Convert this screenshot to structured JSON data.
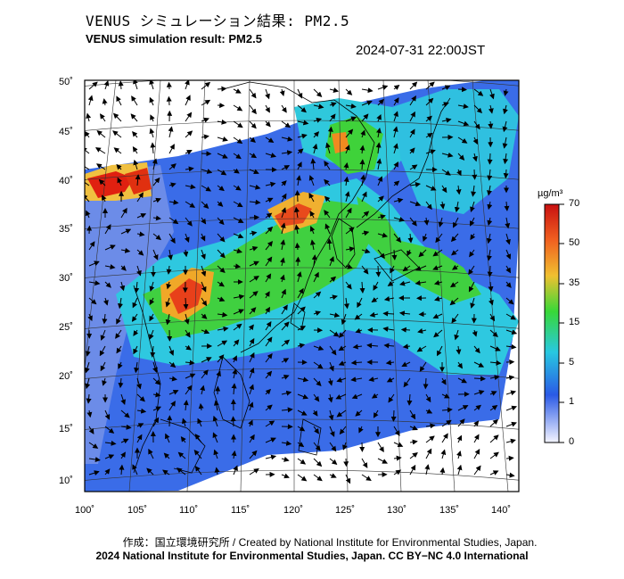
{
  "header": {
    "title_jp": "VENUS シミュレーション結果: PM2.5",
    "title_en": "VENUS simulation result: PM2.5",
    "timestamp": "2024-07-31 22:00JST"
  },
  "map": {
    "lon_labels": [
      "100˚",
      "105˚",
      "110˚",
      "115˚",
      "120˚",
      "125˚",
      "130˚",
      "135˚",
      "140˚"
    ],
    "lat_labels": [
      "50˚",
      "45˚",
      "40˚",
      "35˚",
      "30˚",
      "25˚",
      "20˚",
      "15˚",
      "10˚"
    ],
    "colors": {
      "low": "#e8e8f4",
      "blue": "#2f63e6",
      "cyan": "#2ec8e0",
      "green": "#3fd23a",
      "yellow": "#f0e040",
      "orange": "#f08a20",
      "red": "#e02010"
    }
  },
  "colorbar": {
    "unit": "µg/m³",
    "ticks": [
      "70",
      "50",
      "35",
      "15",
      "5",
      "1",
      "0"
    ]
  },
  "footer": {
    "credit": "作成：国立環境研究所 / Created by National Institute for Environmental Studies, Japan.",
    "copyright": "2024 National Institute for Environmental Studies, Japan. CC BY−NC 4.0 International"
  }
}
